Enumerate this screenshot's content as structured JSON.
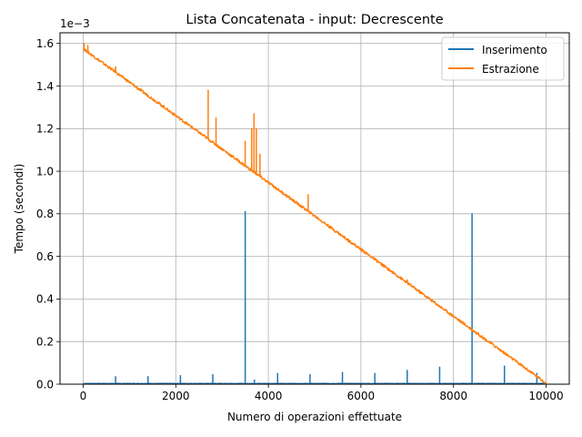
{
  "chart_data": {
    "type": "line",
    "title": "Lista Concatenata - input: Decrescente",
    "xlabel": "Numero di operazioni effettuate",
    "ylabel": "Tempo (secondi)",
    "y_offset_label": "1e−3",
    "y_scale": 0.001,
    "xlim": [
      -500,
      10500
    ],
    "ylim": [
      0,
      1.65
    ],
    "x_ticks": [
      0,
      2000,
      4000,
      6000,
      8000,
      10000
    ],
    "x_tick_labels": [
      "0",
      "2000",
      "4000",
      "6000",
      "8000",
      "10000"
    ],
    "y_ticks": [
      0,
      0.2,
      0.4,
      0.6,
      0.8,
      1.0,
      1.2,
      1.4,
      1.6
    ],
    "y_tick_labels": [
      "0.0",
      "0.2",
      "0.4",
      "0.6",
      "0.8",
      "1.0",
      "1.2",
      "1.4",
      "1.6"
    ],
    "grid": true,
    "legend_position": "top-right",
    "series": [
      {
        "name": "Inserimento",
        "color": "#1f77b4",
        "baseline": 0.003,
        "x_range": [
          0,
          10000
        ],
        "spikes": [
          {
            "x": 700,
            "y": 0.035
          },
          {
            "x": 1400,
            "y": 0.035
          },
          {
            "x": 2100,
            "y": 0.04
          },
          {
            "x": 2800,
            "y": 0.045
          },
          {
            "x": 3500,
            "y": 0.81
          },
          {
            "x": 3700,
            "y": 0.02
          },
          {
            "x": 4200,
            "y": 0.05
          },
          {
            "x": 4900,
            "y": 0.045
          },
          {
            "x": 5600,
            "y": 0.055
          },
          {
            "x": 6300,
            "y": 0.05
          },
          {
            "x": 7000,
            "y": 0.065
          },
          {
            "x": 7700,
            "y": 0.08
          },
          {
            "x": 8400,
            "y": 0.8
          },
          {
            "x": 9100,
            "y": 0.085
          },
          {
            "x": 9800,
            "y": 0.05
          }
        ]
      },
      {
        "name": "Estrazione",
        "color": "#ff7f0e",
        "start": {
          "x": 0,
          "y": 1.575
        },
        "end": {
          "x": 10000,
          "y": 0.005
        },
        "spikes": [
          {
            "x": 20,
            "y": 1.6
          },
          {
            "x": 100,
            "y": 1.59
          },
          {
            "x": 700,
            "y": 1.49
          },
          {
            "x": 2700,
            "y": 1.38
          },
          {
            "x": 2870,
            "y": 1.25
          },
          {
            "x": 3500,
            "y": 1.14
          },
          {
            "x": 3640,
            "y": 1.2
          },
          {
            "x": 3690,
            "y": 1.27
          },
          {
            "x": 3740,
            "y": 1.2
          },
          {
            "x": 3820,
            "y": 1.08
          },
          {
            "x": 4860,
            "y": 0.89
          },
          {
            "x": 7000,
            "y": 0.49
          }
        ]
      }
    ]
  }
}
